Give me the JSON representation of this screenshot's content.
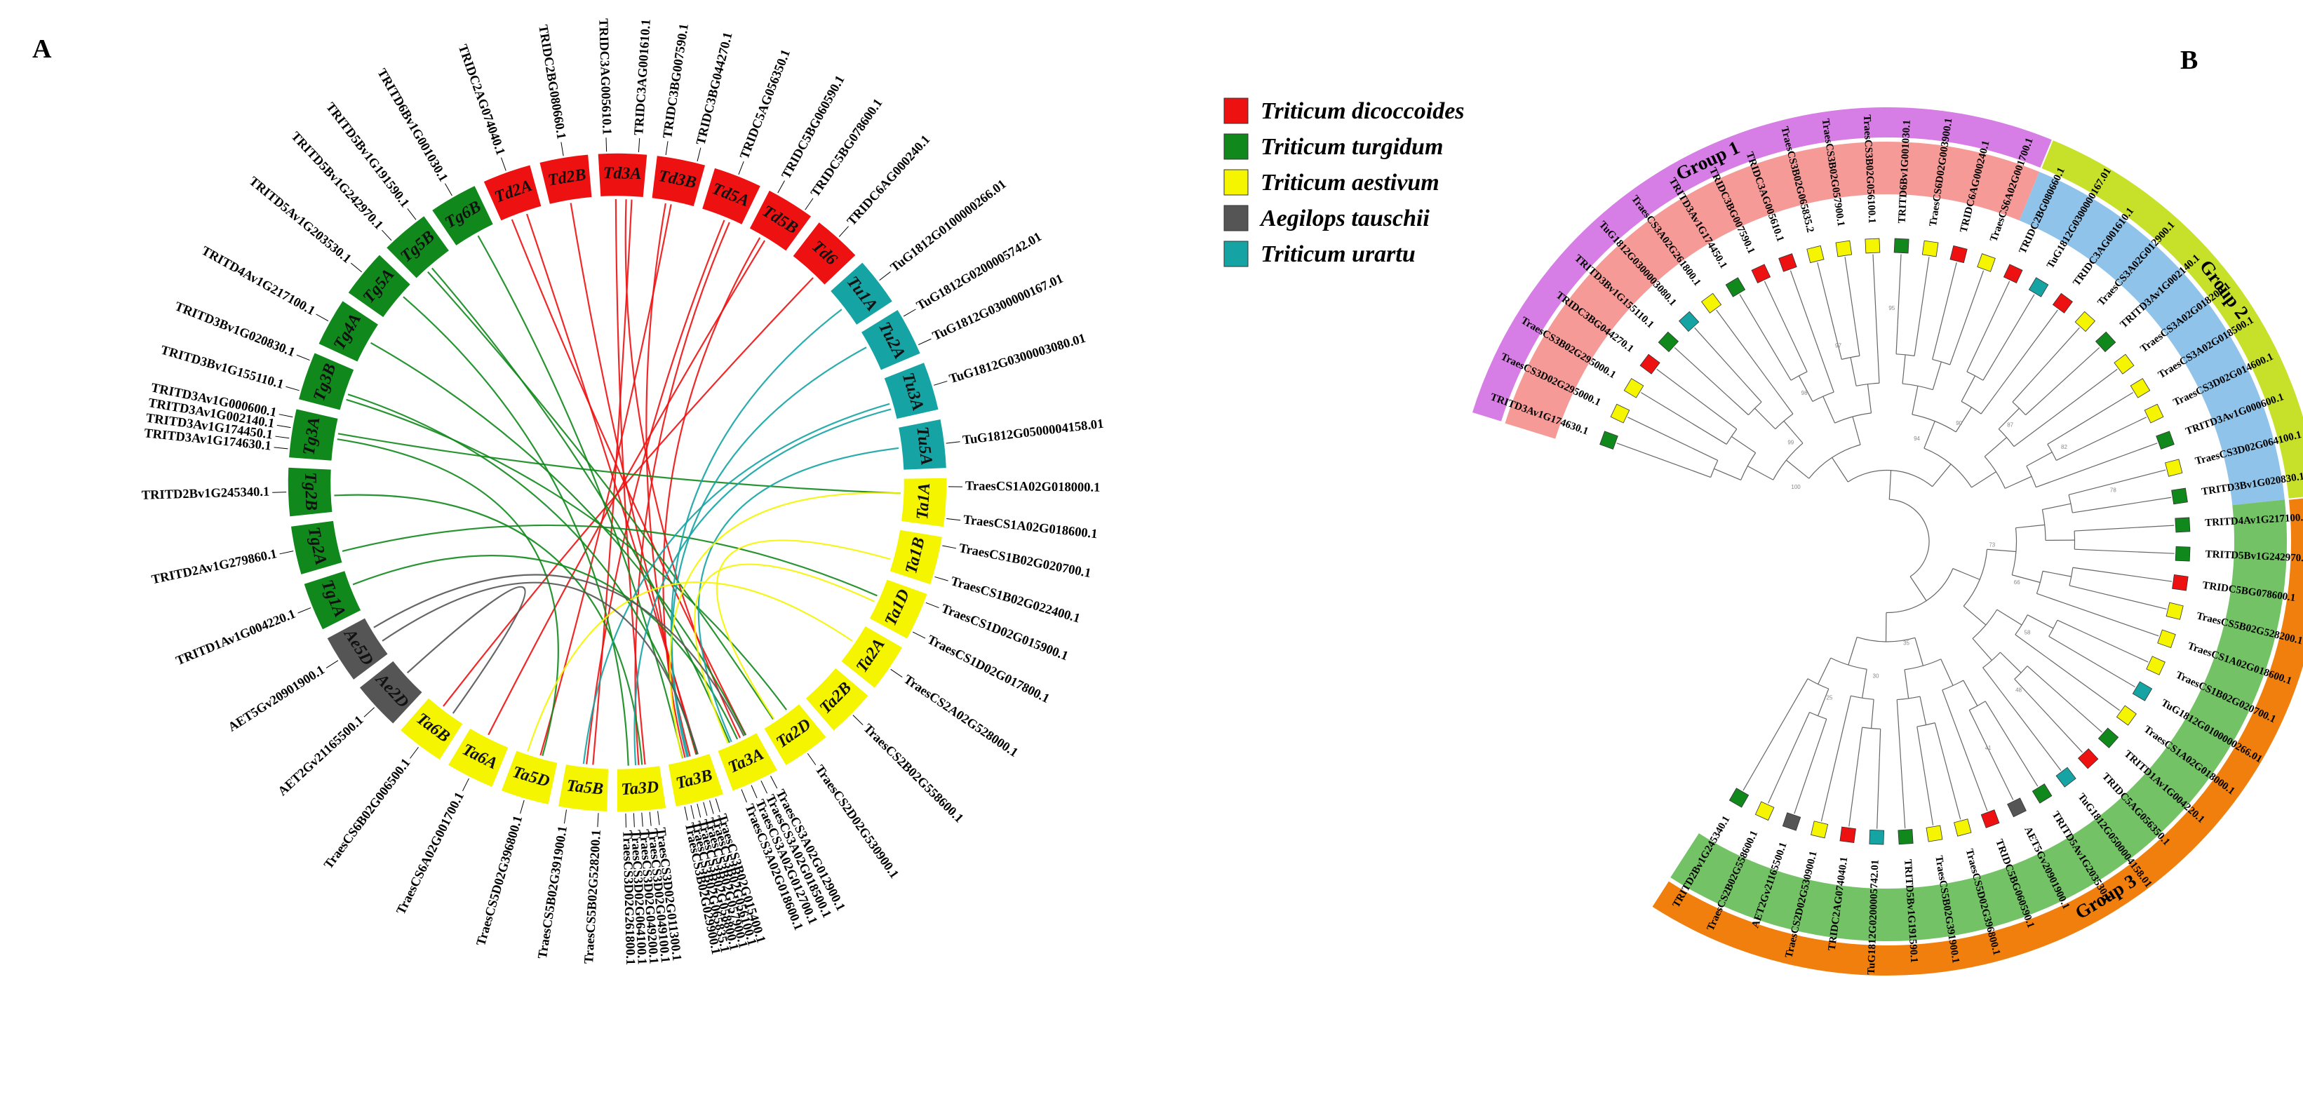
{
  "panel_labels": {
    "a": "A",
    "b": "B"
  },
  "colors": {
    "Triticum dicoccoides": "#ee1111",
    "Triticum turgidum": "#11881c",
    "Triticum aestivum": "#f5f500",
    "Aegilops tauschii": "#555555",
    "Triticum urartu": "#15a3a3"
  },
  "legend": [
    {
      "label": "Triticum dicoccoides",
      "color": "#ee1111"
    },
    {
      "label": "Triticum turgidum",
      "color": "#11881c"
    },
    {
      "label": "Triticum aestivum",
      "color": "#f5f500"
    },
    {
      "label": "Aegilops tauschii",
      "color": "#555555"
    },
    {
      "label": "Triticum urartu",
      "color": "#15a3a3"
    }
  ],
  "chromosomes": [
    {
      "label": "Td2A",
      "species": "Triticum dicoccoides"
    },
    {
      "label": "Td2B",
      "species": "Triticum dicoccoides"
    },
    {
      "label": "Td3A",
      "species": "Triticum dicoccoides"
    },
    {
      "label": "Td3B",
      "species": "Triticum dicoccoides"
    },
    {
      "label": "Td5A",
      "species": "Triticum dicoccoides"
    },
    {
      "label": "Td5B",
      "species": "Triticum dicoccoides"
    },
    {
      "label": "Td6",
      "species": "Triticum dicoccoides"
    },
    {
      "label": "Tu1A",
      "species": "Triticum urartu"
    },
    {
      "label": "Tu2A",
      "species": "Triticum urartu"
    },
    {
      "label": "Tu3A",
      "species": "Triticum urartu"
    },
    {
      "label": "Tu5A",
      "species": "Triticum urartu"
    },
    {
      "label": "Ta1A",
      "species": "Triticum aestivum"
    },
    {
      "label": "Ta1B",
      "species": "Triticum aestivum"
    },
    {
      "label": "Ta1D",
      "species": "Triticum aestivum"
    },
    {
      "label": "Ta2A",
      "species": "Triticum aestivum"
    },
    {
      "label": "Ta2B",
      "species": "Triticum aestivum"
    },
    {
      "label": "Ta2D",
      "species": "Triticum aestivum"
    },
    {
      "label": "Ta3A",
      "species": "Triticum aestivum"
    },
    {
      "label": "Ta3B",
      "species": "Triticum aestivum"
    },
    {
      "label": "Ta3D",
      "species": "Triticum aestivum"
    },
    {
      "label": "Ta5B",
      "species": "Triticum aestivum"
    },
    {
      "label": "Ta5D",
      "species": "Triticum aestivum"
    },
    {
      "label": "Ta6A",
      "species": "Triticum aestivum"
    },
    {
      "label": "Ta6B",
      "species": "Triticum aestivum"
    },
    {
      "label": "Ae2D",
      "species": "Aegilops tauschii"
    },
    {
      "label": "Ae5D",
      "species": "Aegilops tauschii"
    },
    {
      "label": "Tg1A",
      "species": "Triticum turgidum"
    },
    {
      "label": "Tg2A",
      "species": "Triticum turgidum"
    },
    {
      "label": "Tg2B",
      "species": "Triticum turgidum"
    },
    {
      "label": "Tg3A",
      "species": "Triticum turgidum"
    },
    {
      "label": "Tg3B",
      "species": "Triticum turgidum"
    },
    {
      "label": "Tg4A",
      "species": "Triticum turgidum"
    },
    {
      "label": "Tg5A",
      "species": "Triticum turgidum"
    },
    {
      "label": "Tg5B",
      "species": "Triticum turgidum"
    },
    {
      "label": "Tg6B",
      "species": "Triticum turgidum"
    }
  ],
  "circos_genes": [
    {
      "chrom": "Td2A",
      "names": [
        "TRIDC2AG074040.1"
      ]
    },
    {
      "chrom": "Td2B",
      "names": [
        "TRIDC2BG080660.1"
      ]
    },
    {
      "chrom": "Td3A",
      "names": [
        "TRIDC3AG005610.1",
        "TRIDC3AG001610.1"
      ]
    },
    {
      "chrom": "Td3B",
      "names": [
        "TRIDC3BG007590.1",
        "TRIDC3BG044270.1"
      ]
    },
    {
      "chrom": "Td5A",
      "names": [
        "TRIDC5AG056350.1"
      ]
    },
    {
      "chrom": "Td5B",
      "names": [
        "TRIDC5BG060590.1",
        "TRIDC5BG078600.1"
      ]
    },
    {
      "chrom": "Td6",
      "names": [
        "TRIDC6AG000240.1"
      ]
    },
    {
      "chrom": "Tu1A",
      "names": [
        "TuG1812G0100000266.01"
      ]
    },
    {
      "chrom": "Tu2A",
      "names": [
        "TuG1812G0200005742.01",
        "TuG1812G0300000167.01"
      ]
    },
    {
      "chrom": "Tu3A",
      "names": [
        "TuG1812G0300003080.01"
      ]
    },
    {
      "chrom": "Tu5A",
      "names": [
        "TuG1812G0500004158.01"
      ]
    },
    {
      "chrom": "Ta1A",
      "names": [
        "TraesCS1A02G018000.1",
        "TraesCS1A02G018600.1"
      ]
    },
    {
      "chrom": "Ta1B",
      "names": [
        "TraesCS1B02G020700.1",
        "TraesCS1B02G022400.1"
      ]
    },
    {
      "chrom": "Ta1D",
      "names": [
        "TraesCS1D02G015900.1",
        "TraesCS1D02G017800.1"
      ]
    },
    {
      "chrom": "Ta2A",
      "names": [
        "TraesCS2A02G528000.1"
      ]
    },
    {
      "chrom": "Ta2B",
      "names": [
        "TraesCS2B02G558600.1"
      ]
    },
    {
      "chrom": "Ta2D",
      "names": [
        "TraesCS2D02G530900.1"
      ]
    },
    {
      "chrom": "Ta3A",
      "names": [
        "TraesCS3A02G012900.1",
        "TraesCS3A02G018500.1",
        "TraesCS3A02G012700.1",
        "TraesCS3A02G018600.1"
      ]
    },
    {
      "chrom": "Ta3B",
      "names": [
        "TraesCS3B02G015400.1",
        "TraesCS3B02G056100.1",
        "TraesCS3B02G057900.1",
        "TraesCS3B02G058800.1",
        "TraesCS3B02G065835.1",
        "TraesCS3B02G029900.1"
      ]
    },
    {
      "chrom": "Ta3D",
      "names": [
        "TraesCS3D02G011300.1",
        "TraesCS3D02G049100.1",
        "TraesCS3D02G049200.1",
        "TraesCS3D02G064100.1",
        "TraesCS3D02G261800.1"
      ]
    },
    {
      "chrom": "Ta5B",
      "names": [
        "TraesCS5B02G528200.1",
        "TraesCS5B02G391900.1"
      ]
    },
    {
      "chrom": "Ta5D",
      "names": [
        "TraesCS5D02G396800.1"
      ]
    },
    {
      "chrom": "Ta6A",
      "names": [
        "TraesCS6A02G001700.1"
      ]
    },
    {
      "chrom": "Ta6B",
      "names": [
        "TraesCS6B02G006500.1"
      ]
    },
    {
      "chrom": "Ae2D",
      "names": [
        "AET2Gv21165500.1"
      ]
    },
    {
      "chrom": "Ae5D",
      "names": [
        "AET5Gv20901900.1"
      ]
    },
    {
      "chrom": "Tg1A",
      "names": [
        "TRITD1Av1G004220.1"
      ]
    },
    {
      "chrom": "Tg2A",
      "names": [
        "TRITD2Av1G279860.1"
      ]
    },
    {
      "chrom": "Tg2B",
      "names": [
        "TRITD2Bv1G245340.1"
      ]
    },
    {
      "chrom": "Tg3A",
      "names": [
        "TRITD3Av1G174630.1",
        "TRITD3Av1G174450.1",
        "TRITD3Av1G002140.1",
        "TRITD3Av1G000600.1"
      ]
    },
    {
      "chrom": "Tg3B",
      "names": [
        "TRITD3Bv1G155110.1",
        "TRITD3Bv1G020830.1"
      ]
    },
    {
      "chrom": "Tg4A",
      "names": [
        "TRITD4Av1G217100.1"
      ]
    },
    {
      "chrom": "Tg5A",
      "names": [
        "TRITD5Av1G203530.1"
      ]
    },
    {
      "chrom": "Tg5B",
      "names": [
        "TRITD5Bv1G242970.1",
        "TRITD5Bv1G191590.1"
      ]
    },
    {
      "chrom": "Tg6B",
      "names": [
        "TRITD6Bv1G001030.1"
      ]
    }
  ],
  "links": [
    {
      "from": "Td2A",
      "to": "Ta3A"
    },
    {
      "from": "Td2A",
      "to": "Ta3B"
    },
    {
      "from": "Td2B",
      "to": "Ta3B"
    },
    {
      "from": "Td3A",
      "to": "Ta3D"
    },
    {
      "from": "Td3A",
      "to": "Ta5B"
    },
    {
      "from": "Td3A",
      "to": "Ta3A"
    },
    {
      "from": "Td3B",
      "to": "Ta5D"
    },
    {
      "from": "Td3B",
      "to": "Ta3B"
    },
    {
      "from": "Td5A",
      "to": "Ta3D"
    },
    {
      "from": "Td5A",
      "to": "Ta5B"
    },
    {
      "from": "Td5B",
      "to": "Ta6A"
    },
    {
      "from": "Td5B",
      "to": "Ta3B"
    },
    {
      "from": "Td6",
      "to": "Ta6B"
    },
    {
      "from": "Tg6B",
      "to": "Ta3B"
    },
    {
      "from": "Tg5B",
      "to": "Ta3A"
    },
    {
      "from": "Tg5B",
      "to": "Ta2D"
    },
    {
      "from": "Tg5A",
      "to": "Ta3D"
    },
    {
      "from": "Tg4A",
      "to": "Ta3A"
    },
    {
      "from": "Tg3B",
      "to": "Ta3B"
    },
    {
      "from": "Tg3B",
      "to": "Ta2D"
    },
    {
      "from": "Tg3A",
      "to": "Ta1A"
    },
    {
      "from": "Tg3A",
      "to": "Ta5D"
    },
    {
      "from": "Tg2B",
      "to": "Ta3D"
    },
    {
      "from": "Tg2A",
      "to": "Ta1D"
    },
    {
      "from": "Tg1A",
      "to": "Ta3A"
    },
    {
      "from": "Tu1A",
      "to": "Ta3B"
    },
    {
      "from": "Tu2A",
      "to": "Ta3B"
    },
    {
      "from": "Tu3A",
      "to": "Ta3D"
    },
    {
      "from": "Tu3A",
      "to": "Ta5B"
    },
    {
      "from": "Tu5A",
      "to": "Ta3A"
    },
    {
      "from": "Ta1A",
      "to": "Ta3B"
    },
    {
      "from": "Ta1B",
      "to": "Ta2D"
    },
    {
      "from": "Ta1D",
      "to": "Ta3A"
    },
    {
      "from": "Ta2A",
      "to": "Ta5D"
    },
    {
      "from": "Ae5D",
      "to": "Ta3B"
    },
    {
      "from": "Ae5D",
      "to": "Ta3A"
    },
    {
      "from": "Ae2D",
      "to": "Ta6B"
    }
  ],
  "tree": {
    "groups": [
      {
        "name": "Group 1",
        "color": "#d77de6",
        "fill": "#f59a96"
      },
      {
        "name": "Group 2",
        "color": "#c7e02a",
        "fill": "#8fc3ea"
      },
      {
        "name": "Group 3",
        "color": "#f07f0e",
        "fill": "#74c266"
      }
    ],
    "leaves": [
      {
        "name": "TRITD3Av1G174630.1",
        "species": "Triticum turgidum",
        "group": 0
      },
      {
        "name": "TraesCS3D02G295000.1",
        "species": "Triticum aestivum",
        "group": 0
      },
      {
        "name": "TraesCS3B02G295000.1",
        "species": "Triticum aestivum",
        "group": 0
      },
      {
        "name": "TRIDC3BG044270.1",
        "species": "Triticum dicoccoides",
        "group": 0
      },
      {
        "name": "TRITD3Bv1G155110.1",
        "species": "Triticum turgidum",
        "group": 0
      },
      {
        "name": "TuG1812G0300003080.1",
        "species": "Triticum urartu",
        "group": 0
      },
      {
        "name": "TraesCS3A02G261800.1",
        "species": "Triticum aestivum",
        "group": 0
      },
      {
        "name": "TRITD3Av1G174450.1",
        "species": "Triticum turgidum",
        "group": 0
      },
      {
        "name": "TRIDC3BG007590.1",
        "species": "Triticum dicoccoides",
        "group": 0
      },
      {
        "name": "TRIDC3AG005610.1",
        "species": "Triticum dicoccoides",
        "group": 0
      },
      {
        "name": "TraesCS3B02G065835.2",
        "species": "Triticum aestivum",
        "group": 0
      },
      {
        "name": "TraesCS3B02G057900.1",
        "species": "Triticum aestivum",
        "group": 0
      },
      {
        "name": "TraesCS3B02G056100.1",
        "species": "Triticum aestivum",
        "group": 0
      },
      {
        "name": "TRITD6Bv1G001030.1",
        "species": "Triticum turgidum",
        "group": 0
      },
      {
        "name": "TraesCS6D02G003900.1",
        "species": "Triticum aestivum",
        "group": 0
      },
      {
        "name": "TRIDC6AG000240.1",
        "species": "Triticum dicoccoides",
        "group": 0
      },
      {
        "name": "TraesCS6A02G001700.1",
        "species": "Triticum aestivum",
        "group": 0
      },
      {
        "name": "TRIDC2BG080660.1",
        "species": "Triticum dicoccoides",
        "group": 1
      },
      {
        "name": "TuG1812G0300000167.01",
        "species": "Triticum urartu",
        "group": 1
      },
      {
        "name": "TRIDC3AG001610.1",
        "species": "Triticum dicoccoides",
        "group": 1
      },
      {
        "name": "TraesCS3A02G012900.1",
        "species": "Triticum aestivum",
        "group": 1
      },
      {
        "name": "TRITD3Av1G002140.1",
        "species": "Triticum turgidum",
        "group": 1
      },
      {
        "name": "TraesCS3A02G018200.1",
        "species": "Triticum aestivum",
        "group": 1
      },
      {
        "name": "TraesCS3A02G018500.1",
        "species": "Triticum aestivum",
        "group": 1
      },
      {
        "name": "TraesCS3D02G014600.1",
        "species": "Triticum aestivum",
        "group": 1
      },
      {
        "name": "TRITD3Av1G000600.1",
        "species": "Triticum turgidum",
        "group": 1
      },
      {
        "name": "TraesCS3D02G064100.1",
        "species": "Triticum aestivum",
        "group": 1
      },
      {
        "name": "TRITD3Bv1G020830.1",
        "species": "Triticum turgidum",
        "group": 1
      },
      {
        "name": "TRITD4Av1G217100.1",
        "species": "Triticum turgidum",
        "group": 2
      },
      {
        "name": "TRITD5Bv1G242970.1",
        "species": "Triticum turgidum",
        "group": 2
      },
      {
        "name": "TRIDC5BG078600.1",
        "species": "Triticum dicoccoides",
        "group": 2
      },
      {
        "name": "TraesCS5B02G528200.1",
        "species": "Triticum aestivum",
        "group": 2
      },
      {
        "name": "TraesCS1A02G018600.1",
        "species": "Triticum aestivum",
        "group": 2
      },
      {
        "name": "TraesCS1B02G020700.1",
        "species": "Triticum aestivum",
        "group": 2
      },
      {
        "name": "TuG1812G0100000266.01",
        "species": "Triticum urartu",
        "group": 2
      },
      {
        "name": "TraesCS1A02G018000.1",
        "species": "Triticum aestivum",
        "group": 2
      },
      {
        "name": "TRITD1Av1G004220.1",
        "species": "Triticum turgidum",
        "group": 2
      },
      {
        "name": "TRIDC5AG056350.1",
        "species": "Triticum dicoccoides",
        "group": 2
      },
      {
        "name": "TuG1812G0500004158.01",
        "species": "Triticum urartu",
        "group": 2
      },
      {
        "name": "TRITD5Av1G203530.1",
        "species": "Triticum turgidum",
        "group": 2
      },
      {
        "name": "AET5Gv20901900.1",
        "species": "Aegilops tauschii",
        "group": 2
      },
      {
        "name": "TRIDC5BG060590.1",
        "species": "Triticum dicoccoides",
        "group": 2
      },
      {
        "name": "TraesCS5D02G396800.1",
        "species": "Triticum aestivum",
        "group": 2
      },
      {
        "name": "TraesCS5B02G391900.1",
        "species": "Triticum aestivum",
        "group": 2
      },
      {
        "name": "TRITD5Bv1G191590.1",
        "species": "Triticum turgidum",
        "group": 2
      },
      {
        "name": "TuG1812G0200005742.01",
        "species": "Triticum urartu",
        "group": 2
      },
      {
        "name": "TRIDC2AG074040.1",
        "species": "Triticum dicoccoides",
        "group": 2
      },
      {
        "name": "TraesCS2D02G530900.1",
        "species": "Triticum aestivum",
        "group": 2
      },
      {
        "name": "AET2Gv21165500.1",
        "species": "Aegilops tauschii",
        "group": 2
      },
      {
        "name": "TraesCS2B02G558600.1",
        "species": "Triticum aestivum",
        "group": 2
      },
      {
        "name": "TRITD2Bv1G245340.1",
        "species": "Triticum turgidum",
        "group": 2
      }
    ],
    "bootstrap": [
      "100",
      "99",
      "98",
      "97",
      "95",
      "94",
      "90",
      "87",
      "82",
      "78",
      "73",
      "66",
      "58",
      "48",
      "41",
      "35",
      "30",
      "25"
    ]
  }
}
